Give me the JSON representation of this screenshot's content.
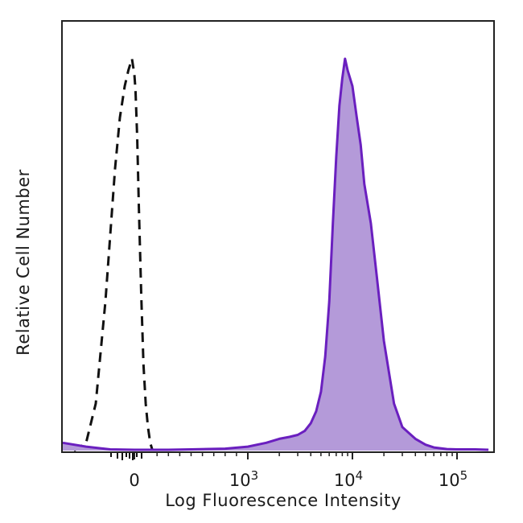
{
  "chart_data": {
    "type": "area",
    "title": "",
    "xlabel": "Log Fluorescence Intensity",
    "ylabel": "Relative Cell Number",
    "x_scale": "biexponential",
    "xlim": [
      -300,
      200000
    ],
    "ylim": [
      0,
      100
    ],
    "grid": false,
    "legend": "none",
    "x_ticks": [
      {
        "base": "0",
        "exp": "",
        "value": 0
      },
      {
        "base": "10",
        "exp": "3",
        "value": 1000
      },
      {
        "base": "10",
        "exp": "4",
        "value": 10000
      },
      {
        "base": "10",
        "exp": "5",
        "value": 100000
      }
    ],
    "series": [
      {
        "style": "dashed",
        "color": "#111111",
        "x": [
          -250,
          -200,
          -160,
          -120,
          -100,
          -80,
          -60,
          -40,
          -25,
          -10,
          0,
          10,
          25,
          40,
          60,
          80,
          100,
          120,
          140,
          160
        ],
        "y": [
          0,
          2,
          12,
          38,
          55,
          72,
          85,
          93,
          97,
          100,
          96,
          92,
          80,
          62,
          40,
          22,
          12,
          6,
          2,
          0
        ]
      },
      {
        "style": "filled",
        "color": "#6a1fbf",
        "fill": "#b49ad9",
        "x": [
          -300,
          -200,
          -100,
          0,
          100,
          300,
          500,
          800,
          1000,
          1500,
          2000,
          2500,
          3000,
          3500,
          4000,
          4500,
          5000,
          5500,
          6000,
          6500,
          7000,
          7500,
          8000,
          8500,
          9000,
          10000,
          11000,
          12000,
          13000,
          15000,
          17000,
          20000,
          25000,
          30000,
          40000,
          50000,
          60000,
          80000,
          100000,
          150000,
          200000
        ],
        "y": [
          2,
          1,
          0.3,
          0.2,
          0.2,
          0.2,
          0.3,
          0.5,
          1,
          2,
          3,
          3.5,
          4,
          5,
          7,
          10,
          15,
          24,
          38,
          58,
          75,
          88,
          95,
          100,
          97,
          93,
          85,
          78,
          68,
          58,
          45,
          28,
          12,
          6,
          3,
          1.5,
          0.8,
          0.4,
          0.3,
          0.3,
          0.2
        ]
      }
    ]
  }
}
